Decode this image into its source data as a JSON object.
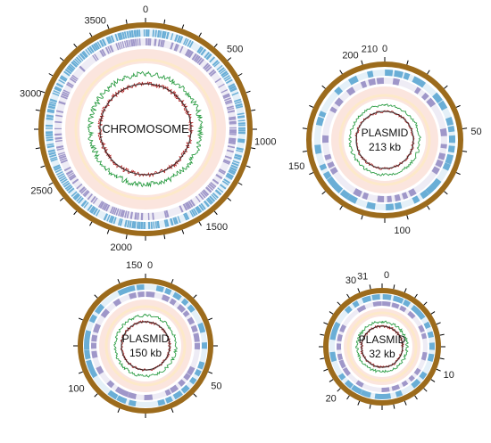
{
  "colors": {
    "backbone": "#9c6b1c",
    "cds_forward": "#6aaed6",
    "cds_reverse": "#9f97c9",
    "gc_content": "#2e9e46",
    "gc_skew": "#b22222",
    "rna_ring": "#f8d3c8",
    "tick": "#000000"
  },
  "panels": [
    {
      "id": "chromosome",
      "center_lines": [
        "CHROMOSOME"
      ],
      "tick_labels": [
        "0",
        "500",
        "1000",
        "1500",
        "2000",
        "2500",
        "3000",
        "3500"
      ]
    },
    {
      "id": "plasmid-213",
      "center_lines": [
        "PLASMID",
        "213 kb"
      ],
      "tick_labels": [
        "0",
        "210",
        "200",
        "50",
        "100",
        "150"
      ]
    },
    {
      "id": "plasmid-150",
      "center_lines": [
        "PLASMID",
        "150 kb"
      ],
      "tick_labels": [
        "0",
        "150",
        "50",
        "100"
      ]
    },
    {
      "id": "plasmid-32",
      "center_lines": [
        "PLASMID",
        "32 kb"
      ],
      "tick_labels": [
        "0",
        "31",
        "30",
        "10",
        "20"
      ]
    }
  ]
}
